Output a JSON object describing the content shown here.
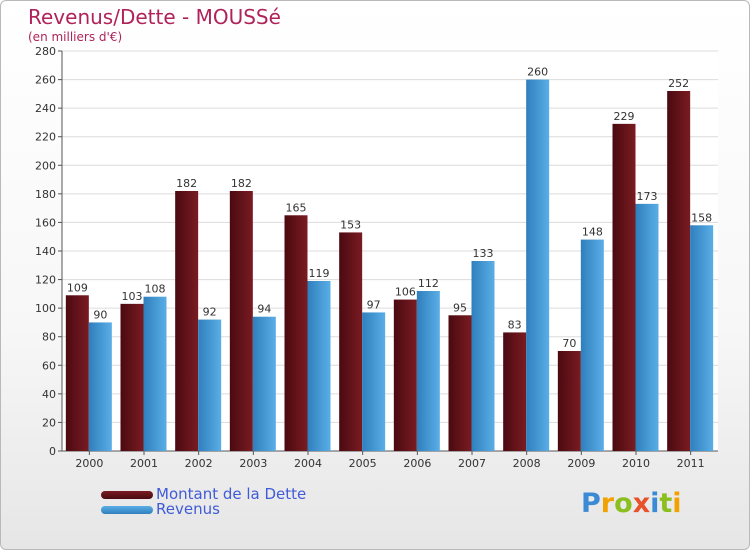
{
  "header": {
    "title": "Revenus/Dette - MOUSSé",
    "subtitle": "(en milliers d'€)"
  },
  "legend": {
    "debt_label": "Montant de la Dette",
    "revenue_label": "Revenus"
  },
  "logo": {
    "text": "Proxiti",
    "letters": [
      {
        "ch": "P",
        "color": "#3a8ad6"
      },
      {
        "ch": "r",
        "color": "#f2a200"
      },
      {
        "ch": "o",
        "color": "#8bbf1f"
      },
      {
        "ch": "x",
        "color": "#e8512a"
      },
      {
        "ch": "i",
        "color": "#3a8ad6"
      },
      {
        "ch": "t",
        "color": "#8bbf1f"
      },
      {
        "ch": "i",
        "color": "#f2a200"
      }
    ]
  },
  "colors": {
    "debt": "#7a1b22",
    "debt_dark": "#4a0a10",
    "revenue": "#5aaee6",
    "revenue_dark": "#2f7fbd",
    "title": "#b0235a",
    "legend_text": "#3f5bd7"
  },
  "chart_data": {
    "type": "bar",
    "title": "Revenus/Dette - MOUSSé",
    "subtitle": "(en milliers d'€)",
    "categories": [
      "2000",
      "2001",
      "2002",
      "2003",
      "2004",
      "2005",
      "2006",
      "2007",
      "2008",
      "2009",
      "2010",
      "2011"
    ],
    "series": [
      {
        "name": "Montant de la Dette",
        "values": [
          109,
          103,
          182,
          182,
          165,
          153,
          106,
          95,
          83,
          70,
          229,
          252
        ]
      },
      {
        "name": "Revenus",
        "values": [
          90,
          108,
          92,
          94,
          119,
          97,
          112,
          133,
          260,
          148,
          173,
          158
        ]
      }
    ],
    "ylim": [
      0,
      280
    ],
    "yticks": [
      0,
      20,
      40,
      60,
      80,
      100,
      120,
      140,
      160,
      180,
      200,
      220,
      240,
      260,
      280
    ],
    "grid": true,
    "legend_position": "bottom-left"
  }
}
